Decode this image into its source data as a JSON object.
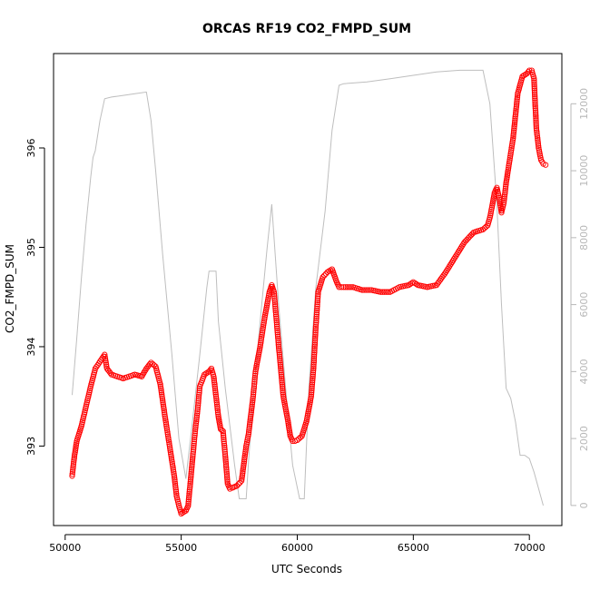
{
  "chart_data": {
    "type": "scatter",
    "title": "ORCAS RF19 CO2_FMPD_SUM",
    "xlabel": "UTC Seconds",
    "ylabel": "CO2_FMPD_SUM",
    "xlim": [
      49500,
      71400
    ],
    "ylim": [
      392.2,
      396.95
    ],
    "y2lim": [
      -600,
      13500
    ],
    "x_ticks": [
      "50000",
      "55000",
      "60000",
      "65000",
      "70000"
    ],
    "y_ticks": [
      "393",
      "394",
      "395",
      "396"
    ],
    "y2_ticks": [
      "0",
      "2000",
      "4000",
      "6000",
      "8000",
      "10000",
      "12000"
    ],
    "grid": false,
    "legend": "none",
    "colors": {
      "points": "#ff0000",
      "altitude_line": "#bebebe",
      "axis": "#000000",
      "right_axis": "#b8b8b8"
    },
    "series": [
      {
        "marker": "open-circle",
        "x": [
          50300,
          50400,
          50500,
          50700,
          50900,
          51100,
          51300,
          51500,
          51700,
          51800,
          52000,
          52500,
          53000,
          53300,
          53500,
          53700,
          53900,
          54100,
          54300,
          54500,
          54700,
          54800,
          54900,
          55000,
          55200,
          55300,
          55500,
          55600,
          55700,
          55800,
          56000,
          56200,
          56300,
          56400,
          56500,
          56600,
          56700,
          56800,
          56900,
          57000,
          57100,
          57200,
          57400,
          57600,
          57800,
          57900,
          58100,
          58200,
          58400,
          58600,
          58800,
          58900,
          59000,
          59200,
          59400,
          59600,
          59700,
          59800,
          59900,
          60000,
          60200,
          60400,
          60600,
          60700,
          60800,
          60900,
          61100,
          61300,
          61500,
          61700,
          61800,
          62000,
          62400,
          62800,
          63200,
          63600,
          64000,
          64400,
          64800,
          65000,
          65200,
          65600,
          66000,
          66400,
          66800,
          67200,
          67600,
          68000,
          68200,
          68300,
          68400,
          68500,
          68600,
          68700,
          68800,
          68900,
          69000,
          69100,
          69300,
          69500,
          69700,
          69900,
          70000,
          70100,
          70200,
          70300,
          70400,
          70500,
          70600,
          70700
        ],
        "y": [
          392.7,
          392.9,
          393.05,
          393.2,
          393.4,
          393.6,
          393.78,
          393.85,
          393.92,
          393.78,
          393.72,
          393.68,
          393.72,
          393.7,
          393.78,
          393.84,
          393.8,
          393.62,
          393.3,
          393.0,
          392.7,
          392.5,
          392.4,
          392.32,
          392.35,
          392.4,
          392.9,
          393.15,
          393.35,
          393.6,
          393.72,
          393.75,
          393.78,
          393.7,
          393.5,
          393.3,
          393.17,
          393.15,
          392.9,
          392.62,
          392.57,
          392.58,
          392.6,
          392.65,
          393.0,
          393.12,
          393.5,
          393.75,
          394.0,
          394.3,
          394.55,
          394.62,
          394.55,
          394.0,
          393.5,
          393.25,
          393.1,
          393.05,
          393.05,
          393.06,
          393.1,
          393.25,
          393.5,
          393.78,
          394.2,
          394.55,
          394.7,
          394.75,
          394.78,
          394.65,
          394.6,
          394.6,
          394.6,
          394.57,
          394.57,
          394.55,
          394.55,
          394.6,
          394.62,
          394.65,
          394.62,
          394.6,
          394.62,
          394.75,
          394.9,
          395.05,
          395.15,
          395.18,
          395.22,
          395.3,
          395.42,
          395.55,
          395.6,
          395.5,
          395.35,
          395.45,
          395.65,
          395.8,
          396.1,
          396.55,
          396.72,
          396.75,
          396.78,
          396.78,
          396.7,
          396.2,
          396.0,
          395.88,
          395.84,
          395.83
        ]
      },
      {
        "axis": "right",
        "x": [
          50300,
          50500,
          50700,
          50900,
          51100,
          51200,
          51300,
          51500,
          51700,
          52000,
          52500,
          53000,
          53500,
          53700,
          53900,
          54200,
          54600,
          54900,
          55200,
          55500,
          55800,
          56100,
          56200,
          56500,
          56600,
          56900,
          57300,
          57500,
          57600,
          57800,
          57900,
          58100,
          58400,
          58700,
          58900,
          59000,
          59200,
          59500,
          59800,
          60100,
          60300,
          60500,
          60800,
          61200,
          61500,
          61800,
          62000,
          63000,
          64000,
          65000,
          66000,
          67000,
          68000,
          68300,
          68600,
          68800,
          69000,
          69200,
          69400,
          69600,
          69800,
          70000,
          70200,
          70400,
          70600
        ],
        "y": [
          3300,
          5000,
          6800,
          8400,
          9800,
          10400,
          10600,
          11500,
          12150,
          12200,
          12250,
          12300,
          12350,
          11500,
          10000,
          7500,
          4500,
          2000,
          800,
          2600,
          4500,
          6500,
          7000,
          7000,
          5500,
          3500,
          1200,
          200,
          200,
          200,
          1300,
          3200,
          5500,
          7700,
          9000,
          8000,
          6000,
          3500,
          1200,
          200,
          200,
          3500,
          6500,
          8800,
          11200,
          12550,
          12600,
          12650,
          12750,
          12850,
          12950,
          13000,
          13000,
          12000,
          9000,
          6000,
          3500,
          3200,
          2500,
          1500,
          1500,
          1400,
          1000,
          500,
          0
        ]
      }
    ]
  }
}
